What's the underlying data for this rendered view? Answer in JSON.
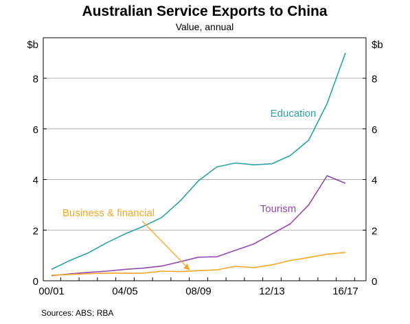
{
  "chart_data": {
    "type": "line",
    "title": "Australian Service Exports to China",
    "subtitle": "Value, annual",
    "unit_left": "$b",
    "unit_right": "$b",
    "source": "Sources:   ABS; RBA",
    "ylim": [
      0,
      9.6
    ],
    "yticks": [
      0,
      2,
      4,
      6,
      8
    ],
    "ytick_labels": [
      "0",
      "2",
      "4",
      "6",
      "8"
    ],
    "grid": true,
    "x": [
      "00/01",
      "01/02",
      "02/03",
      "03/04",
      "04/05",
      "05/06",
      "06/07",
      "07/08",
      "08/09",
      "09/10",
      "10/11",
      "11/12",
      "12/13",
      "13/14",
      "14/15",
      "15/16",
      "16/17"
    ],
    "xtick_labels": [
      "00/01",
      "04/05",
      "08/09",
      "12/13",
      "16/17"
    ],
    "xtick_indices": [
      0,
      4,
      8,
      12,
      16
    ],
    "series": [
      {
        "name": "Education",
        "color": "#2aa1a5",
        "values": [
          0.45,
          0.8,
          1.1,
          1.5,
          1.85,
          2.15,
          2.5,
          3.15,
          3.95,
          4.5,
          4.65,
          4.58,
          4.62,
          4.95,
          5.55,
          7.0,
          9.0
        ]
      },
      {
        "name": "Tourism",
        "color": "#9147b0",
        "values": [
          0.2,
          0.27,
          0.33,
          0.38,
          0.45,
          0.5,
          0.58,
          0.75,
          0.93,
          0.95,
          1.2,
          1.45,
          1.85,
          2.25,
          3.0,
          4.15,
          3.85
        ]
      },
      {
        "name": "Business & financial",
        "color": "#f5a623",
        "values": [
          0.22,
          0.25,
          0.28,
          0.3,
          0.3,
          0.3,
          0.38,
          0.36,
          0.4,
          0.43,
          0.57,
          0.52,
          0.63,
          0.8,
          0.92,
          1.05,
          1.12
        ]
      }
    ]
  }
}
